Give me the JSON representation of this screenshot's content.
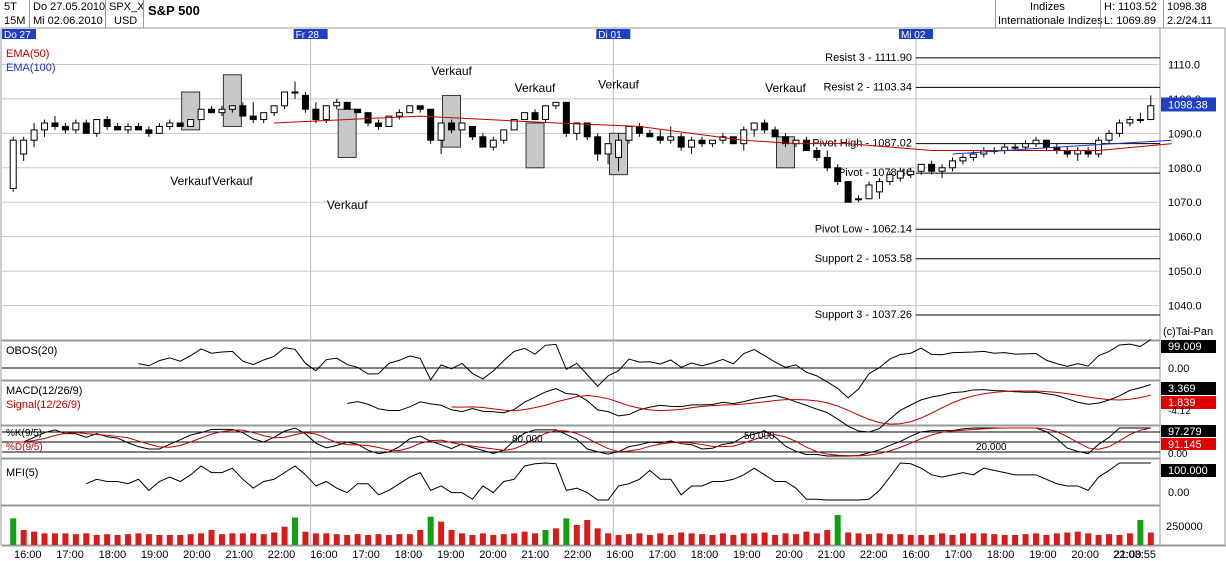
{
  "header": {
    "period": "5T",
    "interval": "15M",
    "date_from": "Do 27.05.2010",
    "date_to": "Mi 02.06.2010",
    "symbol": "SPX_X",
    "currency": "USD",
    "title": "S&P 500",
    "group1": "Indizes",
    "group2": "Internationale Indizes",
    "high": "H: 1103.52",
    "low": "L: 1069.89",
    "last": "1098.38",
    "pages": "2.2/24.11",
    "copyright": "(c)Tai-Pan"
  },
  "day_labels": [
    {
      "label": "Do 27",
      "bar": 0
    },
    {
      "label": "Fr 28",
      "bar": 29
    },
    {
      "label": "Di 01",
      "bar": 58
    },
    {
      "label": "Mi 02",
      "bar": 87
    }
  ],
  "time_labels": [
    "16:00",
    "17:00",
    "18:00",
    "19:00",
    "20:00",
    "21:00",
    "22:00",
    "16:00",
    "17:00",
    "18:00",
    "19:00",
    "20:00",
    "21:00",
    "22:00",
    "16:00",
    "17:00",
    "18:00",
    "19:00",
    "20:00",
    "21:00",
    "22:00",
    "16:00",
    "17:00",
    "18:00",
    "19:00",
    "20:00",
    "21:00",
    "22:03:55"
  ],
  "chart_data": {
    "type": "candlestick",
    "ylim": [
      1030,
      1120
    ],
    "yticks": [
      1040,
      1050,
      1060,
      1070,
      1080,
      1090,
      1100,
      1110
    ],
    "last_price": "1098.38",
    "ohlc": [
      [
        1074,
        1089,
        1073,
        1088
      ],
      [
        1084,
        1089,
        1082,
        1088
      ],
      [
        1088,
        1093,
        1086,
        1091
      ],
      [
        1091,
        1094,
        1089,
        1093
      ],
      [
        1093,
        1095,
        1091,
        1092
      ],
      [
        1092,
        1093,
        1090,
        1091
      ],
      [
        1091,
        1094,
        1090,
        1093
      ],
      [
        1093,
        1094,
        1090,
        1090
      ],
      [
        1090,
        1094,
        1089,
        1094
      ],
      [
        1094,
        1095,
        1091,
        1092
      ],
      [
        1092,
        1093,
        1091,
        1091
      ],
      [
        1091,
        1093,
        1090,
        1092
      ],
      [
        1092,
        1093,
        1091,
        1091
      ],
      [
        1091,
        1092,
        1089,
        1090
      ],
      [
        1090,
        1093,
        1090,
        1092
      ],
      [
        1092,
        1094,
        1091,
        1093
      ],
      [
        1093,
        1093,
        1092,
        1092
      ],
      [
        1092,
        1094,
        1092,
        1094
      ],
      [
        1094,
        1097,
        1094,
        1097
      ],
      [
        1097,
        1098,
        1096,
        1096
      ],
      [
        1096,
        1098,
        1095,
        1097
      ],
      [
        1097,
        1098,
        1096,
        1098
      ],
      [
        1098,
        1099,
        1095,
        1095
      ],
      [
        1095,
        1099,
        1093,
        1094
      ],
      [
        1094,
        1096,
        1093,
        1096
      ],
      [
        1096,
        1098,
        1095,
        1098
      ],
      [
        1098,
        1102,
        1097,
        1102
      ],
      [
        1102,
        1105,
        1100,
        1102
      ],
      [
        1101,
        1102,
        1096,
        1097
      ],
      [
        1097,
        1099,
        1093,
        1094
      ],
      [
        1094,
        1098,
        1093,
        1098
      ],
      [
        1098,
        1100,
        1097,
        1099
      ],
      [
        1099,
        1099,
        1097,
        1097
      ],
      [
        1097,
        1097,
        1096,
        1096
      ],
      [
        1096,
        1096,
        1092,
        1093
      ],
      [
        1093,
        1094,
        1091,
        1092
      ],
      [
        1092,
        1095,
        1092,
        1095
      ],
      [
        1095,
        1097,
        1094,
        1096
      ],
      [
        1096,
        1098,
        1096,
        1098
      ],
      [
        1098,
        1098,
        1096,
        1097
      ],
      [
        1097,
        1097,
        1087,
        1088
      ],
      [
        1088,
        1093,
        1084,
        1093
      ],
      [
        1093,
        1094,
        1090,
        1091
      ],
      [
        1091,
        1093,
        1091,
        1093
      ],
      [
        1092,
        1092,
        1088,
        1089
      ],
      [
        1089,
        1090,
        1086,
        1086
      ],
      [
        1086,
        1089,
        1085,
        1088
      ],
      [
        1088,
        1091,
        1087,
        1091
      ],
      [
        1091,
        1094,
        1091,
        1094
      ],
      [
        1094,
        1096,
        1094,
        1096
      ],
      [
        1096,
        1097,
        1094,
        1094
      ],
      [
        1094,
        1098,
        1093,
        1098
      ],
      [
        1098,
        1099,
        1097,
        1099
      ],
      [
        1099,
        1099,
        1089,
        1090
      ],
      [
        1090,
        1093,
        1088,
        1093
      ],
      [
        1093,
        1093,
        1088,
        1089
      ],
      [
        1089,
        1090,
        1082,
        1084
      ],
      [
        1084,
        1087,
        1081,
        1087
      ],
      [
        1083,
        1090,
        1079,
        1088
      ],
      [
        1088,
        1092,
        1087,
        1092
      ],
      [
        1092,
        1093,
        1089,
        1090
      ],
      [
        1090,
        1091,
        1089,
        1089
      ],
      [
        1089,
        1091,
        1087,
        1088
      ],
      [
        1088,
        1092,
        1087,
        1089
      ],
      [
        1089,
        1090,
        1085,
        1086
      ],
      [
        1086,
        1089,
        1084,
        1088
      ],
      [
        1088,
        1089,
        1086,
        1087
      ],
      [
        1087,
        1088,
        1086,
        1088
      ],
      [
        1088,
        1090,
        1087,
        1089
      ],
      [
        1089,
        1089,
        1087,
        1087
      ],
      [
        1087,
        1092,
        1085,
        1091
      ],
      [
        1091,
        1093,
        1089,
        1093
      ],
      [
        1093,
        1094,
        1090,
        1091
      ],
      [
        1091,
        1092,
        1089,
        1089
      ],
      [
        1089,
        1090,
        1086,
        1087
      ],
      [
        1087,
        1088,
        1086,
        1088
      ],
      [
        1088,
        1089,
        1085,
        1085
      ],
      [
        1085,
        1086,
        1082,
        1083
      ],
      [
        1083,
        1085,
        1079,
        1080
      ],
      [
        1080,
        1081,
        1075,
        1076
      ],
      [
        1076,
        1076,
        1070,
        1070
      ],
      [
        1071,
        1072,
        1070,
        1071
      ],
      [
        1071,
        1076,
        1071,
        1075
      ],
      [
        1073,
        1077,
        1071,
        1076
      ],
      [
        1076,
        1079,
        1075,
        1078
      ],
      [
        1077,
        1080,
        1076,
        1079
      ],
      [
        1078,
        1080,
        1077,
        1079
      ],
      [
        1079,
        1081,
        1078,
        1081
      ],
      [
        1081,
        1082,
        1078,
        1079
      ],
      [
        1079,
        1081,
        1077,
        1080
      ],
      [
        1080,
        1083,
        1079,
        1082
      ],
      [
        1082,
        1084,
        1081,
        1083
      ],
      [
        1083,
        1085,
        1082,
        1084
      ],
      [
        1084,
        1086,
        1083,
        1085
      ],
      [
        1085,
        1086,
        1084,
        1085
      ],
      [
        1085,
        1087,
        1084,
        1086
      ],
      [
        1086,
        1087,
        1085,
        1086
      ],
      [
        1086,
        1088,
        1085,
        1087
      ],
      [
        1087,
        1089,
        1086,
        1088
      ],
      [
        1088,
        1088,
        1085,
        1086
      ],
      [
        1086,
        1087,
        1084,
        1085
      ],
      [
        1085,
        1086,
        1083,
        1084
      ],
      [
        1084,
        1086,
        1082,
        1085
      ],
      [
        1085,
        1086,
        1083,
        1084
      ],
      [
        1084,
        1089,
        1083,
        1088
      ],
      [
        1088,
        1091,
        1087,
        1090
      ],
      [
        1090,
        1094,
        1089,
        1093
      ],
      [
        1093,
        1095,
        1092,
        1094
      ],
      [
        1094,
        1096,
        1093,
        1094
      ],
      [
        1094,
        1101,
        1094,
        1098
      ]
    ],
    "ema50": [
      [
        25,
        1093
      ],
      [
        39,
        1095
      ],
      [
        52,
        1093
      ],
      [
        60,
        1092
      ],
      [
        65,
        1090
      ],
      [
        70,
        1088
      ],
      [
        75,
        1087
      ],
      [
        80,
        1087
      ],
      [
        88,
        1085
      ],
      [
        96,
        1085
      ],
      [
        104,
        1085
      ],
      [
        111,
        1087
      ]
    ],
    "ema100": [
      [
        90,
        1084
      ],
      [
        100,
        1086
      ],
      [
        111,
        1088
      ]
    ],
    "pivot_levels": [
      {
        "label": "Resist 3 - 1111.90",
        "value": 1111.9
      },
      {
        "label": "Resist 2 - 1103.34",
        "value": 1103.34
      },
      {
        "label": "Pivot High - 1087.02",
        "value": 1087.02
      },
      {
        "label": "Pivot - 1078.46",
        "value": 1078.46
      },
      {
        "label": "Pivot Low - 1062.14",
        "value": 1062.14
      },
      {
        "label": "Support 2 - 1053.58",
        "value": 1053.58
      },
      {
        "label": "Support 3 - 1037.26",
        "value": 1037.26
      }
    ],
    "signals": [
      {
        "label": "Verkauf",
        "text_value": 1075,
        "box_bar": 17,
        "box": [
          1091,
          1102
        ]
      },
      {
        "label": "Verkauf",
        "text_value": 1075,
        "box_bar": 21,
        "box": [
          1092,
          1107
        ]
      },
      {
        "label": "Verkauf",
        "text_value": 1068,
        "box_bar": 32,
        "box": [
          1083,
          1097
        ]
      },
      {
        "label": "Verkauf",
        "text_value": 1107,
        "box_bar": 42,
        "box": [
          1086,
          1101
        ]
      },
      {
        "label": "Verkauf",
        "text_value": 1102,
        "box_bar": 50,
        "box": [
          1080,
          1093
        ]
      },
      {
        "label": "Verkauf",
        "text_value": 1103,
        "box_bar": 58,
        "box": [
          1078,
          1090
        ]
      },
      {
        "label": "Verkauf",
        "text_value": 1102,
        "box_bar": 74,
        "box": [
          1080,
          1089
        ]
      }
    ],
    "indicators": {
      "obos": {
        "name": "OBOS(20)",
        "value": "99.009",
        "ref": "0.00"
      },
      "macd": {
        "name": "MACD(12/26/9)",
        "signal_name": "Signal(12/26/9)",
        "value": "3.369",
        "signal_value": "1.839",
        "min": "-4.12"
      },
      "stoch": {
        "k_name": "%K(9/5)",
        "d_name": "%D(9/5)",
        "k_value": "97.279",
        "d_value": "91.145",
        "ref": "0.00",
        "level_labels": [
          "80.000",
          "50.000",
          "20.000"
        ]
      },
      "mfi": {
        "name": "MFI(5)",
        "value": "100.000",
        "ref": "0.00"
      },
      "volume": {
        "value": "250000"
      }
    },
    "volume": [
      32,
      18,
      16,
      14,
      14,
      14,
      13,
      14,
      12,
      13,
      12,
      13,
      14,
      13,
      12,
      12,
      12,
      13,
      14,
      18,
      13,
      14,
      14,
      14,
      13,
      15,
      22,
      33,
      16,
      14,
      14,
      13,
      12,
      13,
      12,
      13,
      12,
      13,
      13,
      18,
      34,
      28,
      18,
      14,
      12,
      14,
      12,
      13,
      14,
      16,
      14,
      18,
      20,
      32,
      24,
      30,
      20,
      14,
      12,
      13,
      14,
      12,
      14,
      12,
      15,
      14,
      13,
      12,
      14,
      12,
      14,
      14,
      15,
      12,
      14,
      13,
      16,
      14,
      18,
      36,
      15,
      14,
      13,
      14,
      13,
      13,
      12,
      12,
      12,
      14,
      12,
      14,
      14,
      14,
      13,
      12,
      12,
      13,
      14,
      12,
      14,
      15,
      16,
      14,
      12,
      13,
      12,
      14,
      30,
      15
    ]
  }
}
